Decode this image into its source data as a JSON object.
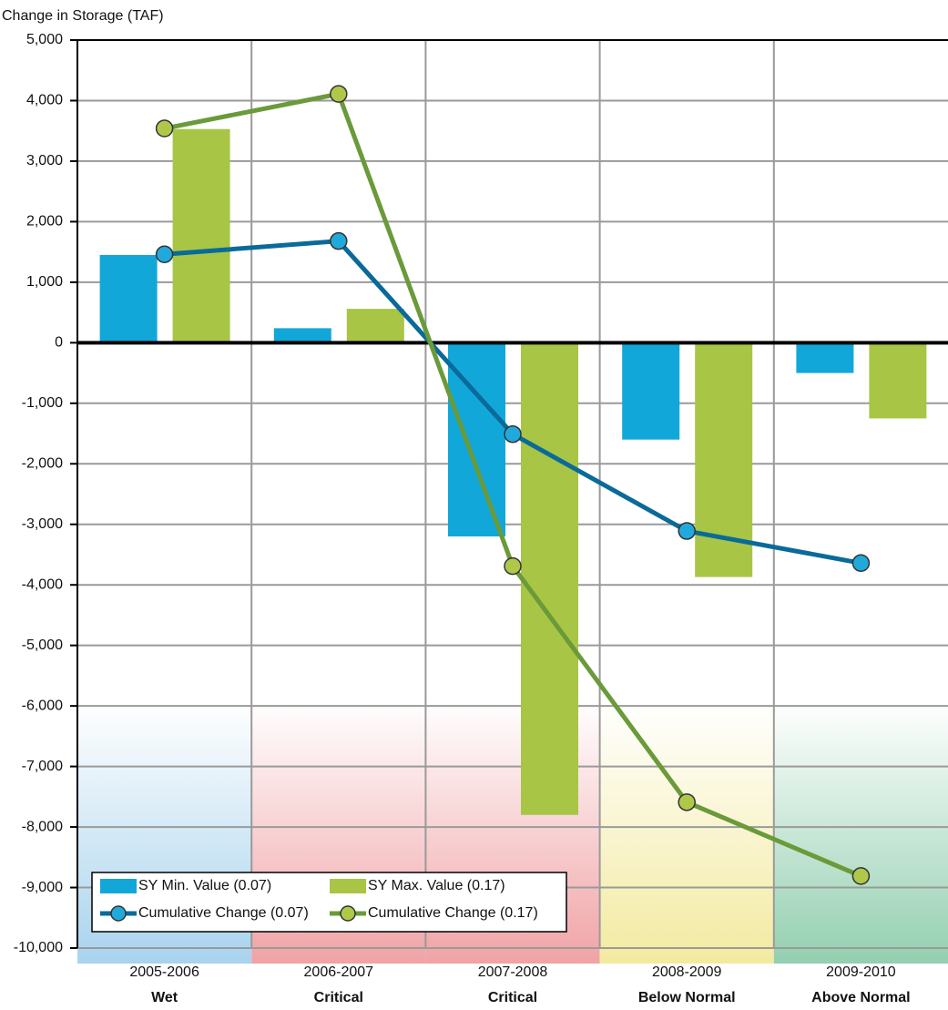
{
  "chart_data": {
    "type": "bar",
    "y_axis_label": "Change in Storage (TAF)",
    "categories": [
      "2005-2006",
      "2006-2007",
      "2007-2008",
      "2008-2009",
      "2009-2010"
    ],
    "year_types": [
      "Wet",
      "Critical",
      "Critical",
      "Below Normal",
      "Above Normal"
    ],
    "band_colors": [
      "#a9d3ee",
      "#f0a3a6",
      "#f0a3a6",
      "#f3eaa0",
      "#93cfb0"
    ],
    "series": [
      {
        "name": "SY Min. Value (0.07)",
        "type": "bar",
        "color": "#12a7d9",
        "values": [
          1450,
          240,
          -3200,
          -1600,
          -500
        ]
      },
      {
        "name": "SY Max. Value (0.17)",
        "type": "bar",
        "color": "#a8c546",
        "values": [
          3530,
          560,
          -7800,
          -3870,
          -1250
        ]
      },
      {
        "name": "Cumulative Change (0.07)",
        "type": "line",
        "color": "#0a6a99",
        "marker_color": "#22a9dc",
        "values": [
          1460,
          1680,
          -1510,
          -3110,
          -3640
        ]
      },
      {
        "name": "Cumulative Change (0.17)",
        "type": "line",
        "color": "#6a9a3a",
        "marker_color": "#b0c84a",
        "values": [
          3540,
          4110,
          -3690,
          -7590,
          -8810
        ]
      }
    ],
    "ylim": [
      -10000,
      5000
    ],
    "yticks": [
      {
        "value": -10000,
        "label": "-10,000"
      },
      {
        "value": -9000,
        "label": "-9,000"
      },
      {
        "value": -8000,
        "label": "-8,000"
      },
      {
        "value": -7000,
        "label": "-7,000"
      },
      {
        "value": -6000,
        "label": "-6,000"
      },
      {
        "value": -5000,
        "label": "-5,000"
      },
      {
        "value": -4000,
        "label": "-4,000"
      },
      {
        "value": -3000,
        "label": "-3,000"
      },
      {
        "value": -2000,
        "label": "-2,000"
      },
      {
        "value": -1000,
        "label": "-1,000"
      },
      0,
      {
        "value": 1000,
        "label": "1,000"
      },
      {
        "value": 2000,
        "label": "2,000"
      },
      {
        "value": 3000,
        "label": "3,000"
      },
      {
        "value": 4000,
        "label": "4,000"
      },
      {
        "value": 5000,
        "label": "5,000"
      }
    ],
    "grid": true,
    "legend": "lower left"
  }
}
